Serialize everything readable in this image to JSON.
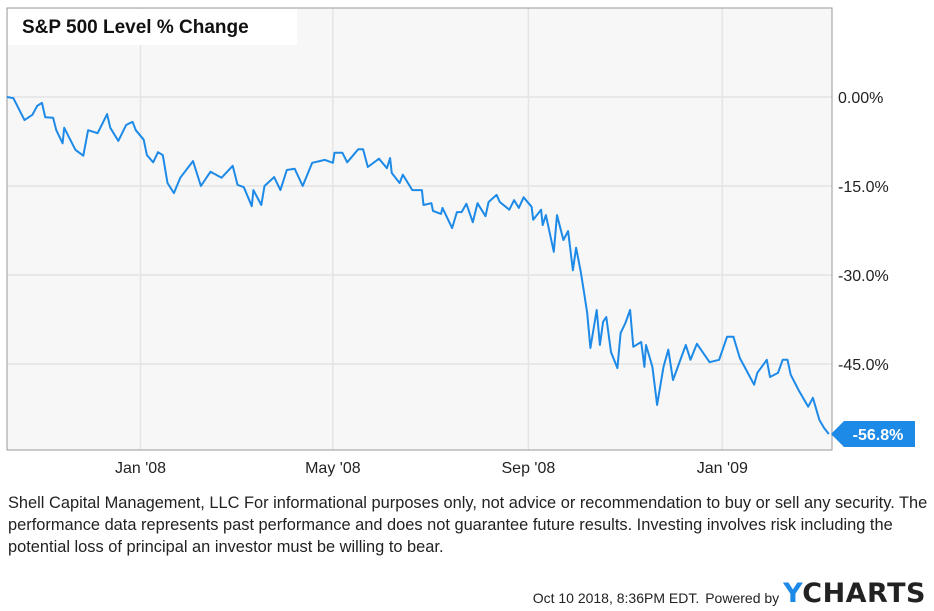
{
  "chart_data": {
    "type": "line",
    "title": "S&P 500 Level % Change",
    "xlabel": "",
    "ylabel": "",
    "x_tick_labels": [
      {
        "date": "2008-01-01",
        "label": "Jan '08"
      },
      {
        "date": "2008-05-01",
        "label": "May '08"
      },
      {
        "date": "2008-09-01",
        "label": "Sep '08"
      },
      {
        "date": "2009-01-01",
        "label": "Jan '09"
      }
    ],
    "y_ticks": [
      {
        "value": 0,
        "label": "0.00%"
      },
      {
        "value": -15,
        "label": "-15.0%"
      },
      {
        "value": -30,
        "label": "-30.0%"
      },
      {
        "value": -45,
        "label": "-45.0%"
      }
    ],
    "xlim": [
      "2007-10-09",
      "2009-03-11"
    ],
    "ylim": [
      -59.5,
      15
    ],
    "y_axis_side": "right",
    "grid": true,
    "line_color": "#1d8ae8",
    "end_label": "-56.8%",
    "series": [
      {
        "points": [
          [
            "2007-10-09",
            0.0
          ],
          [
            "2007-10-13",
            -0.2
          ],
          [
            "2007-10-20",
            -3.9
          ],
          [
            "2007-10-25",
            -3.0
          ],
          [
            "2007-10-28",
            -1.5
          ],
          [
            "2007-10-31",
            -1.0
          ],
          [
            "2007-11-02",
            -3.4
          ],
          [
            "2007-11-07",
            -3.5
          ],
          [
            "2007-11-09",
            -5.6
          ],
          [
            "2007-11-13",
            -7.8
          ],
          [
            "2007-11-14",
            -5.2
          ],
          [
            "2007-11-21",
            -8.9
          ],
          [
            "2007-11-26",
            -9.9
          ],
          [
            "2007-11-29",
            -5.6
          ],
          [
            "2007-12-05",
            -6.1
          ],
          [
            "2007-12-11",
            -2.9
          ],
          [
            "2007-12-13",
            -5.2
          ],
          [
            "2007-12-18",
            -7.4
          ],
          [
            "2007-12-23",
            -4.7
          ],
          [
            "2007-12-27",
            -4.2
          ],
          [
            "2007-12-29",
            -5.6
          ],
          [
            "2008-01-03",
            -7.2
          ],
          [
            "2008-01-05",
            -9.8
          ],
          [
            "2008-01-09",
            -11.0
          ],
          [
            "2008-01-12",
            -9.3
          ],
          [
            "2008-01-15",
            -9.8
          ],
          [
            "2008-01-18",
            -14.5
          ],
          [
            "2008-01-22",
            -16.2
          ],
          [
            "2008-01-26",
            -13.6
          ],
          [
            "2008-02-03",
            -10.8
          ],
          [
            "2008-02-08",
            -15.0
          ],
          [
            "2008-02-14",
            -12.6
          ],
          [
            "2008-02-21",
            -13.6
          ],
          [
            "2008-02-28",
            -11.6
          ],
          [
            "2008-03-02",
            -14.8
          ],
          [
            "2008-03-06",
            -15.2
          ],
          [
            "2008-03-11",
            -18.4
          ],
          [
            "2008-03-12",
            -15.7
          ],
          [
            "2008-03-17",
            -18.2
          ],
          [
            "2008-03-19",
            -15.0
          ],
          [
            "2008-03-25",
            -13.5
          ],
          [
            "2008-03-29",
            -15.7
          ],
          [
            "2008-04-02",
            -12.3
          ],
          [
            "2008-04-07",
            -12.1
          ],
          [
            "2008-04-12",
            -15.0
          ],
          [
            "2008-04-18",
            -11.1
          ],
          [
            "2008-04-26",
            -10.6
          ],
          [
            "2008-05-01",
            -11.1
          ],
          [
            "2008-05-02",
            -9.4
          ],
          [
            "2008-05-07",
            -9.4
          ],
          [
            "2008-05-10",
            -11.0
          ],
          [
            "2008-05-17",
            -8.8
          ],
          [
            "2008-05-20",
            -8.8
          ],
          [
            "2008-05-23",
            -11.8
          ],
          [
            "2008-05-30",
            -10.4
          ],
          [
            "2008-06-04",
            -12.0
          ],
          [
            "2008-06-06",
            -10.3
          ],
          [
            "2008-06-07",
            -12.8
          ],
          [
            "2008-06-12",
            -14.5
          ],
          [
            "2008-06-14",
            -13.1
          ],
          [
            "2008-06-20",
            -15.7
          ],
          [
            "2008-06-26",
            -15.7
          ],
          [
            "2008-06-27",
            -18.2
          ],
          [
            "2008-07-02",
            -17.9
          ],
          [
            "2008-07-03",
            -19.2
          ],
          [
            "2008-07-08",
            -19.7
          ],
          [
            "2008-07-09",
            -18.7
          ],
          [
            "2008-07-15",
            -22.1
          ],
          [
            "2008-07-18",
            -19.4
          ],
          [
            "2008-07-21",
            -19.4
          ],
          [
            "2008-07-24",
            -18.0
          ],
          [
            "2008-07-28",
            -21.1
          ],
          [
            "2008-07-31",
            -17.9
          ],
          [
            "2008-08-05",
            -20.1
          ],
          [
            "2008-08-07",
            -17.7
          ],
          [
            "2008-08-12",
            -16.5
          ],
          [
            "2008-08-14",
            -17.7
          ],
          [
            "2008-08-20",
            -19.0
          ],
          [
            "2008-08-23",
            -17.4
          ],
          [
            "2008-08-26",
            -18.7
          ],
          [
            "2008-08-29",
            -16.9
          ],
          [
            "2008-09-03",
            -18.5
          ],
          [
            "2008-09-04",
            -20.7
          ],
          [
            "2008-09-09",
            -19.0
          ],
          [
            "2008-09-10",
            -21.6
          ],
          [
            "2008-09-12",
            -19.9
          ],
          [
            "2008-09-17",
            -26.1
          ],
          [
            "2008-09-19",
            -19.9
          ],
          [
            "2008-09-23",
            -24.1
          ],
          [
            "2008-09-26",
            -22.6
          ],
          [
            "2008-09-29",
            -29.2
          ],
          [
            "2008-10-01",
            -25.4
          ],
          [
            "2008-10-04",
            -29.5
          ],
          [
            "2008-10-06",
            -32.9
          ],
          [
            "2008-10-08",
            -36.4
          ],
          [
            "2008-10-10",
            -42.3
          ],
          [
            "2008-10-14",
            -35.9
          ],
          [
            "2008-10-16",
            -41.8
          ],
          [
            "2008-10-18",
            -37.9
          ],
          [
            "2008-10-20",
            -37.1
          ],
          [
            "2008-10-23",
            -43.0
          ],
          [
            "2008-10-27",
            -45.7
          ],
          [
            "2008-10-29",
            -39.8
          ],
          [
            "2008-11-01",
            -38.1
          ],
          [
            "2008-11-04",
            -35.9
          ],
          [
            "2008-11-06",
            -42.1
          ],
          [
            "2008-11-11",
            -41.3
          ],
          [
            "2008-11-13",
            -45.5
          ],
          [
            "2008-11-14",
            -41.8
          ],
          [
            "2008-11-18",
            -45.5
          ],
          [
            "2008-11-21",
            -51.9
          ],
          [
            "2008-11-25",
            -45.5
          ],
          [
            "2008-11-28",
            -42.6
          ],
          [
            "2008-12-01",
            -47.7
          ],
          [
            "2008-12-09",
            -41.8
          ],
          [
            "2008-12-12",
            -44.3
          ],
          [
            "2008-12-16",
            -41.6
          ],
          [
            "2008-12-24",
            -44.7
          ],
          [
            "2008-12-30",
            -44.3
          ],
          [
            "2009-01-04",
            -40.4
          ],
          [
            "2009-01-08",
            -40.4
          ],
          [
            "2009-01-12",
            -44.0
          ],
          [
            "2009-01-16",
            -46.0
          ],
          [
            "2009-01-21",
            -48.5
          ],
          [
            "2009-01-23",
            -46.5
          ],
          [
            "2009-01-29",
            -44.3
          ],
          [
            "2009-01-31",
            -47.2
          ],
          [
            "2009-02-05",
            -46.5
          ],
          [
            "2009-02-08",
            -44.3
          ],
          [
            "2009-02-11",
            -44.3
          ],
          [
            "2009-02-13",
            -46.8
          ],
          [
            "2009-02-18",
            -49.4
          ],
          [
            "2009-02-24",
            -52.2
          ],
          [
            "2009-02-27",
            -50.7
          ],
          [
            "2009-03-03",
            -54.4
          ],
          [
            "2009-03-06",
            -55.8
          ],
          [
            "2009-03-09",
            -56.8
          ]
        ]
      }
    ]
  },
  "disclaimer": "Shell Capital Management, LLC For informational purposes only, not advice or recommendation to buy or sell any security. The performance data represents past performance and does not guarantee future results. Investing involves risk including the potential loss of principal an investor must be willing to bear.",
  "footer": {
    "timestamp": "Oct 10 2018, 8:36PM EDT.",
    "powered_by": "Powered by",
    "logo": "YCHARTS",
    "logo_y": "Y",
    "logo_rest": "CHARTS"
  }
}
